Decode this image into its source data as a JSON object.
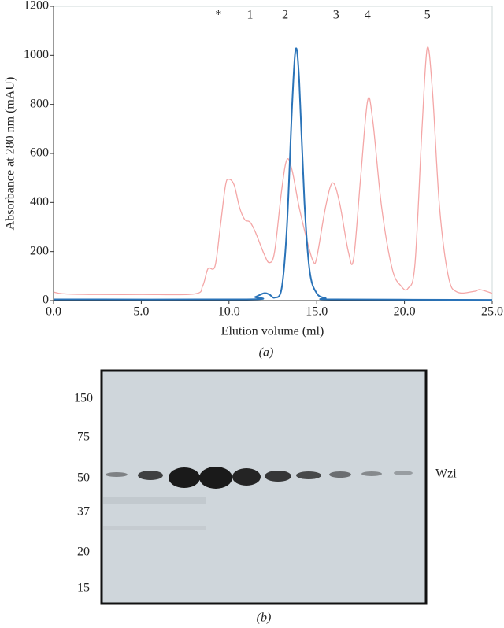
{
  "chart_data": {
    "type": "line",
    "xlabel": "Elution volume (ml)",
    "ylabel": "Absorbance at 280 nm (mAU)",
    "caption": "(a)",
    "xlim": [
      0,
      25
    ],
    "ylim": [
      0,
      1200
    ],
    "xticks": [
      {
        "value": 0,
        "label": "0.0"
      },
      {
        "value": 5,
        "label": "5.0"
      },
      {
        "value": 10,
        "label": "10.0"
      },
      {
        "value": 15,
        "label": "15.0"
      },
      {
        "value": 20,
        "label": "20.0"
      },
      {
        "value": 25,
        "label": "25.0"
      }
    ],
    "yticks": [
      0,
      200,
      400,
      600,
      800,
      1000,
      1200
    ],
    "annotations": [
      {
        "text": "*",
        "x": 9.4
      },
      {
        "text": "1",
        "x": 11.2
      },
      {
        "text": "2",
        "x": 13.2
      },
      {
        "text": "3",
        "x": 16.1
      },
      {
        "text": "4",
        "x": 17.9
      },
      {
        "text": "5",
        "x": 21.3
      }
    ],
    "series": [
      {
        "color": "#f4a6a6",
        "x": [
          0,
          0.5,
          2,
          5,
          8,
          8.5,
          8.8,
          9.2,
          9.5,
          9.8,
          10.0,
          10.3,
          10.6,
          10.9,
          11.2,
          11.5,
          12.0,
          12.3,
          12.6,
          13.0,
          13.3,
          13.6,
          14.0,
          14.5,
          14.8,
          15.0,
          15.5,
          15.9,
          16.3,
          16.8,
          17.1,
          17.5,
          17.9,
          18.2,
          18.7,
          19.3,
          19.8,
          20.2,
          20.6,
          21.0,
          21.3,
          21.6,
          22.0,
          22.5,
          23.0,
          24.0,
          24.3,
          25.0
        ],
        "values": [
          35,
          28,
          25,
          25,
          27,
          60,
          130,
          140,
          300,
          470,
          495,
          470,
          380,
          330,
          320,
          280,
          190,
          155,
          200,
          450,
          575,
          530,
          380,
          230,
          160,
          175,
          380,
          480,
          400,
          200,
          170,
          500,
          815,
          730,
          380,
          130,
          60,
          50,
          150,
          700,
          1030,
          850,
          380,
          100,
          35,
          38,
          45,
          30
        ]
      },
      {
        "color": "#2a73b8",
        "x": [
          0,
          11.0,
          11.5,
          12.0,
          12.3,
          12.6,
          13.0,
          13.3,
          13.6,
          13.8,
          14.0,
          14.3,
          14.6,
          15.0,
          15.5,
          16.0,
          25.0
        ],
        "values": [
          5,
          5,
          15,
          30,
          25,
          12,
          50,
          300,
          800,
          1025,
          900,
          400,
          120,
          30,
          10,
          5,
          3
        ]
      }
    ]
  },
  "gel": {
    "markers": [
      "150",
      "75",
      "50",
      "37",
      "20",
      "15"
    ],
    "band_label": "Wzi",
    "caption": "(b)"
  }
}
